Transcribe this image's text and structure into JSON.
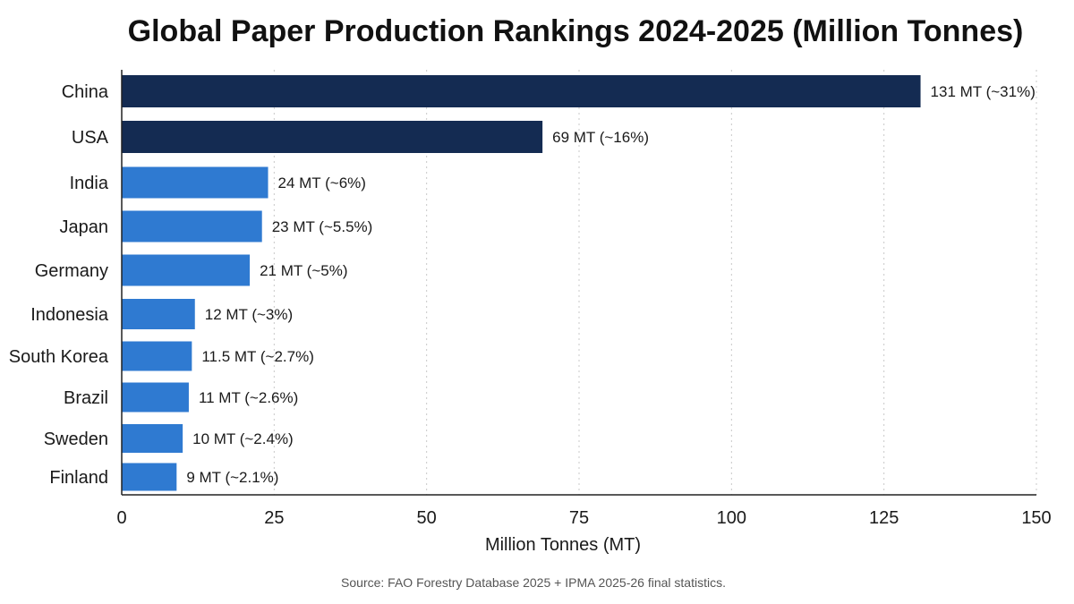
{
  "chart_data": {
    "type": "bar",
    "orientation": "horizontal",
    "title": "Global Paper Production Rankings 2024-2025 (Million Tonnes)",
    "xlabel": "Million Tonnes (MT)",
    "ylabel": "",
    "xlim": [
      0,
      150
    ],
    "x_ticks": [
      0,
      25,
      50,
      75,
      100,
      125,
      150
    ],
    "grid": "vertical dotted",
    "categories": [
      "China",
      "USA",
      "India",
      "Japan",
      "Germany",
      "Indonesia",
      "South Korea",
      "Brazil",
      "Sweden",
      "Finland"
    ],
    "values": [
      131,
      69,
      24,
      23,
      21,
      12,
      11.5,
      11,
      10,
      9
    ],
    "value_labels": [
      "131 MT (~31%)",
      "69 MT (~16%)",
      "24 MT (~6%)",
      "23 MT (~5.5%)",
      "21 MT (~5%)",
      "12 MT (~3%)",
      "11.5 MT (~2.7%)",
      "11 MT (~2.6%)",
      "10 MT (~2.4%)",
      "9 MT (~2.1%)"
    ],
    "bar_colors": [
      "#142b52",
      "#142b52",
      "#2f7ad1",
      "#2f7ad1",
      "#2f7ad1",
      "#2f7ad1",
      "#2f7ad1",
      "#2f7ad1",
      "#2f7ad1",
      "#2f7ad1"
    ],
    "source": "Source: FAO Forestry Database 2025 + IPMA 2025-26 final statistics."
  }
}
